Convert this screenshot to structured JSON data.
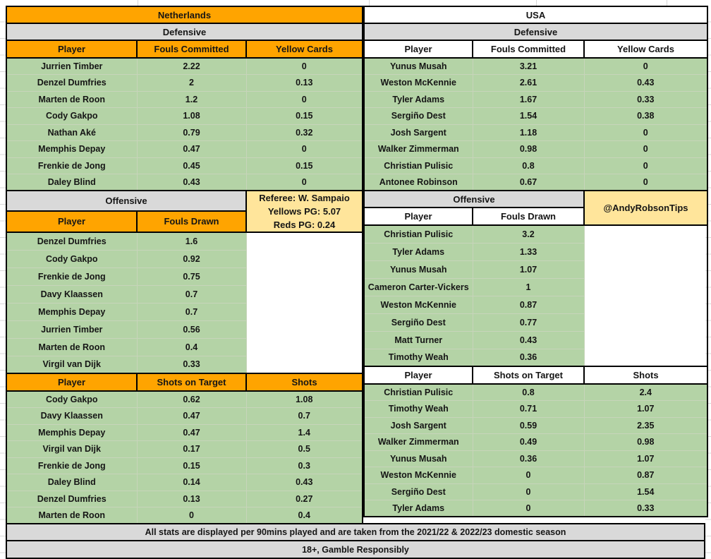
{
  "colors": {
    "orange": "#FFA400",
    "green": "#B4D3A6",
    "gray": "#D9D9D9",
    "yellow": "#FFE59B"
  },
  "netherlands": {
    "title": "Netherlands",
    "defensive": {
      "label": "Defensive",
      "headers": [
        "Player",
        "Fouls Committed",
        "Yellow Cards"
      ],
      "rows": [
        [
          "Jurrien Timber",
          "2.22",
          "0"
        ],
        [
          "Denzel Dumfries",
          "2",
          "0.13"
        ],
        [
          "Marten de Roon",
          "1.2",
          "0"
        ],
        [
          "Cody Gakpo",
          "1.08",
          "0.15"
        ],
        [
          "Nathan Aké",
          "0.79",
          "0.32"
        ],
        [
          "Memphis Depay",
          "0.47",
          "0"
        ],
        [
          "Frenkie de Jong",
          "0.45",
          "0.15"
        ],
        [
          "Daley Blind",
          "0.43",
          "0"
        ]
      ]
    },
    "offensive": {
      "label": "Offensive",
      "headers": [
        "Player",
        "Fouls Drawn"
      ],
      "rows": [
        [
          "Denzel Dumfries",
          "1.6"
        ],
        [
          "Cody Gakpo",
          "0.92"
        ],
        [
          "Frenkie de Jong",
          "0.75"
        ],
        [
          "Davy Klaassen",
          "0.7"
        ],
        [
          "Memphis Depay",
          "0.7"
        ],
        [
          "Jurrien Timber",
          "0.56"
        ],
        [
          "Marten de Roon",
          "0.4"
        ],
        [
          "Virgil van Dijk",
          "0.33"
        ]
      ]
    },
    "shots": {
      "headers": [
        "Player",
        "Shots on Target",
        "Shots"
      ],
      "rows": [
        [
          "Cody Gakpo",
          "0.62",
          "1.08"
        ],
        [
          "Davy Klaassen",
          "0.47",
          "0.7"
        ],
        [
          "Memphis Depay",
          "0.47",
          "1.4"
        ],
        [
          "Virgil van Dijk",
          "0.17",
          "0.5"
        ],
        [
          "Frenkie de Jong",
          "0.15",
          "0.3"
        ],
        [
          "Daley Blind",
          "0.14",
          "0.43"
        ],
        [
          "Denzel Dumfries",
          "0.13",
          "0.27"
        ],
        [
          "Marten de Roon",
          "0",
          "0.4"
        ]
      ]
    }
  },
  "usa": {
    "title": "USA",
    "defensive": {
      "label": "Defensive",
      "headers": [
        "Player",
        "Fouls Committed",
        "Yellow Cards"
      ],
      "rows": [
        [
          "Yunus Musah",
          "3.21",
          "0"
        ],
        [
          "Weston McKennie",
          "2.61",
          "0.43"
        ],
        [
          "Tyler Adams",
          "1.67",
          "0.33"
        ],
        [
          "Sergiño Dest",
          "1.54",
          "0.38"
        ],
        [
          "Josh Sargent",
          "1.18",
          "0"
        ],
        [
          "Walker Zimmerman",
          "0.98",
          "0"
        ],
        [
          "Christian Pulisic",
          "0.8",
          "0"
        ],
        [
          "Antonee Robinson",
          "0.67",
          "0"
        ]
      ]
    },
    "offensive": {
      "label": "Offensive",
      "headers": [
        "Player",
        "Fouls Drawn"
      ],
      "rows": [
        [
          "Christian Pulisic",
          "3.2"
        ],
        [
          "Tyler Adams",
          "1.33"
        ],
        [
          "Yunus Musah",
          "1.07"
        ],
        [
          "Cameron Carter-Vickers",
          "1"
        ],
        [
          "Weston McKennie",
          "0.87"
        ],
        [
          "Sergiño Dest",
          "0.77"
        ],
        [
          "Matt Turner",
          "0.43"
        ],
        [
          "Timothy Weah",
          "0.36"
        ]
      ]
    },
    "shots": {
      "headers": [
        "Player",
        "Shots on Target",
        "Shots"
      ],
      "rows": [
        [
          "Christian Pulisic",
          "0.8",
          "2.4"
        ],
        [
          "Timothy Weah",
          "0.71",
          "1.07"
        ],
        [
          "Josh Sargent",
          "0.59",
          "2.35"
        ],
        [
          "Walker Zimmerman",
          "0.49",
          "0.98"
        ],
        [
          "Yunus Musah",
          "0.36",
          "1.07"
        ],
        [
          "Weston McKennie",
          "0",
          "0.87"
        ],
        [
          "Sergiño Dest",
          "0",
          "1.54"
        ],
        [
          "Tyler Adams",
          "0",
          "0.33"
        ]
      ]
    }
  },
  "referee_box": {
    "line1": "Referee: W. Sampaio",
    "line2": "Yellows PG: 5.07",
    "line3": "Reds PG: 0.24"
  },
  "handle_box": {
    "text": "@AndyRobsonTips"
  },
  "footer": {
    "line1": "All stats are displayed per 90mins played and are taken from the 2021/22 & 2022/23 domestic season",
    "line2": "18+, Gamble Responsibly"
  }
}
